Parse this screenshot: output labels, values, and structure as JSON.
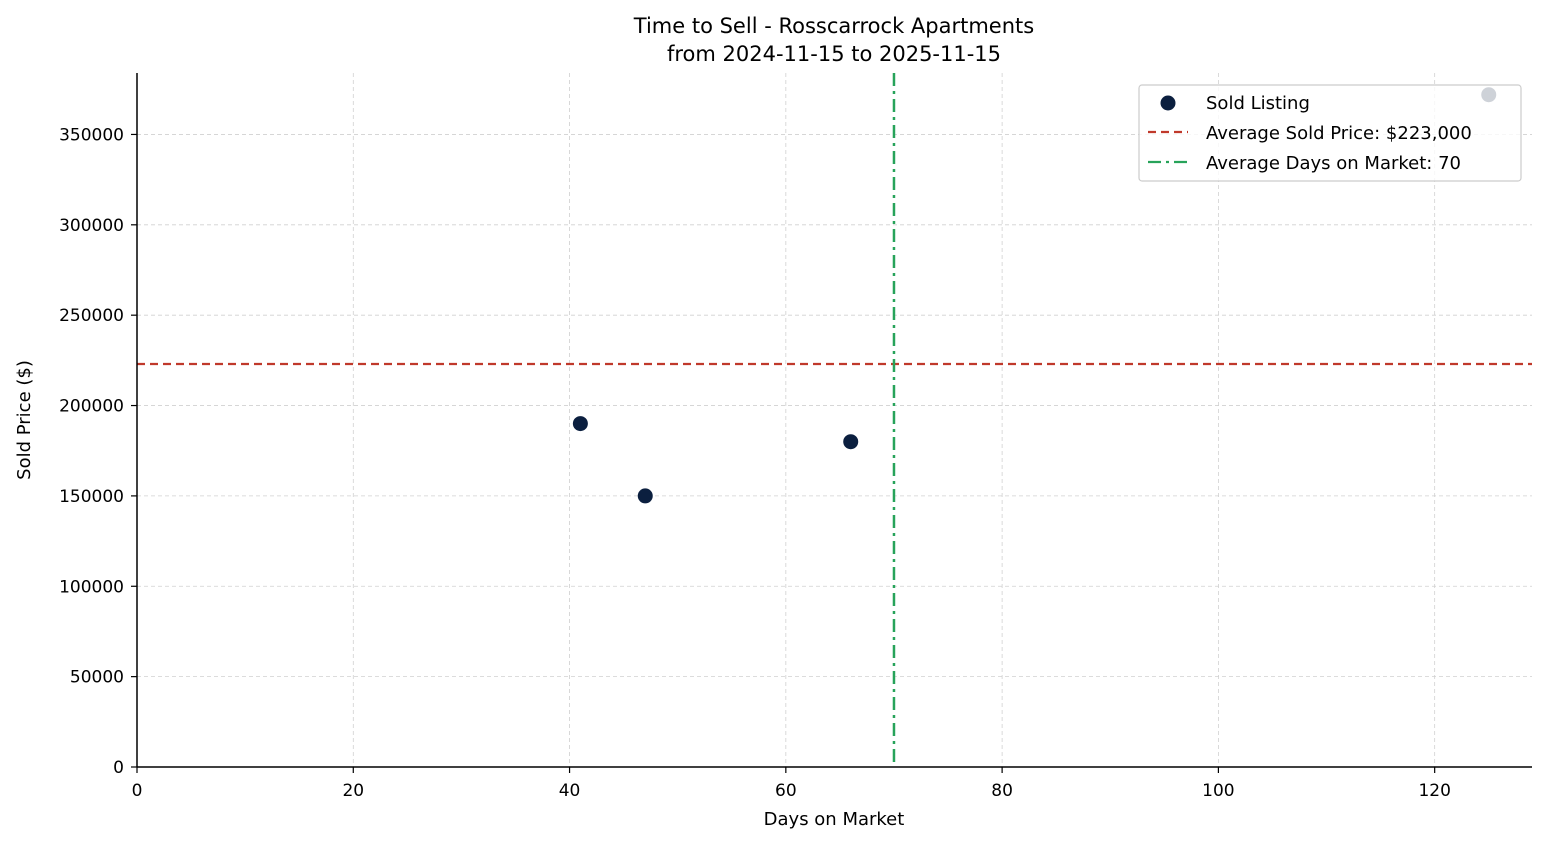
{
  "chart_data": {
    "type": "scatter",
    "title": "Time to Sell - Rosscarrock Apartments",
    "subtitle": "from 2024-11-15 to 2025-11-15",
    "xlabel": "Days on Market",
    "ylabel": "Sold Price ($)",
    "xlim": [
      0,
      129
    ],
    "ylim": [
      0,
      384000
    ],
    "x_ticks": [
      0,
      20,
      40,
      60,
      80,
      100,
      120
    ],
    "y_ticks": [
      0,
      50000,
      100000,
      150000,
      200000,
      250000,
      300000,
      350000
    ],
    "grid": true,
    "legend_position": "upper right",
    "series": [
      {
        "name": "Sold Listing",
        "type": "scatter",
        "color": "#0b1f3f",
        "points": [
          {
            "x": 41,
            "y": 190000
          },
          {
            "x": 47,
            "y": 150000
          },
          {
            "x": 66,
            "y": 180000
          },
          {
            "x": 125,
            "y": 372000
          }
        ]
      },
      {
        "name": "Average Sold Price: $223,000",
        "type": "hline",
        "value": 223000,
        "color": "#c0392b",
        "linestyle": "dashed"
      },
      {
        "name": "Average Days on Market: 70",
        "type": "vline",
        "value": 70,
        "color": "#27a35a",
        "linestyle": "dashdot"
      }
    ]
  },
  "legend": {
    "items": [
      {
        "label": "Sold Listing"
      },
      {
        "label": "Average Sold Price: $223,000"
      },
      {
        "label": "Average Days on Market: 70"
      }
    ]
  }
}
